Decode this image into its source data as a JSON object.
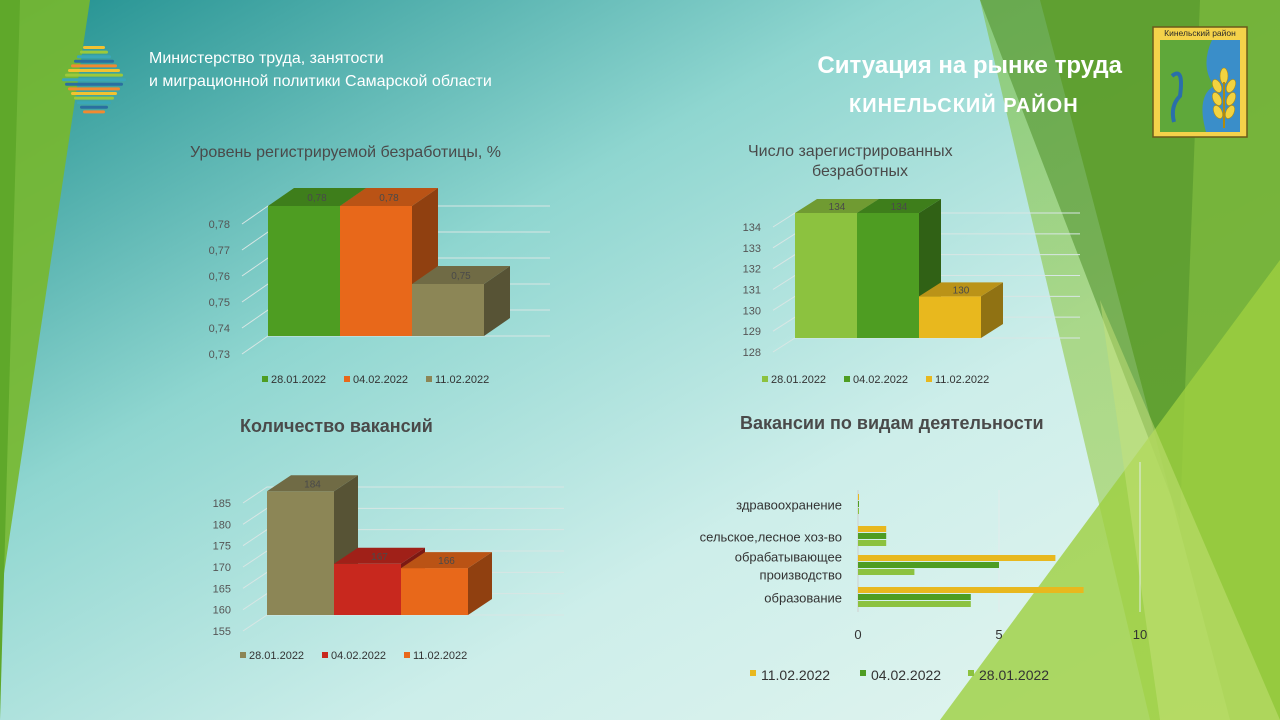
{
  "header": {
    "ministry_line1": "Министерство труда, занятости",
    "ministry_line2": "и миграционной политики  Самарской области",
    "title": "Ситуация на рынке труда",
    "subtitle": "КИНЕЛЬСКИЙ  РАЙОН",
    "emblem_text": "Кинельский район"
  },
  "colors": {
    "green_light": "#8cc23f",
    "green_mid": "#4e9d22",
    "orange": "#e8681a",
    "olive": "#8c8656",
    "yellow": "#e8b81e",
    "red": "#c8281e"
  },
  "chart_data": [
    {
      "id": "unemployment_rate",
      "type": "bar",
      "title": "Уровень регистрируемой  безработицы, %",
      "categories": [
        "28.01.2022",
        "04.02.2022",
        "11.02.2022"
      ],
      "values": [
        0.78,
        0.78,
        0.75
      ],
      "value_labels": [
        "0,78",
        "0,78",
        "0,75"
      ],
      "ticks": [
        "0,73",
        "0,74",
        "0,75",
        "0,76",
        "0,77",
        "0,78"
      ],
      "ylim": [
        0.73,
        0.78
      ],
      "colors": [
        "#4e9d22",
        "#e8681a",
        "#8c8656"
      ],
      "legend": "bottom"
    },
    {
      "id": "registered_unemployed",
      "type": "bar",
      "title_lines": [
        "Число зарегистрированных",
        "безработных"
      ],
      "categories": [
        "28.01.2022",
        "04.02.2022",
        "11.02.2022"
      ],
      "values": [
        134,
        134,
        130
      ],
      "value_labels": [
        "134",
        "134",
        "130"
      ],
      "ticks": [
        "128",
        "129",
        "130",
        "131",
        "132",
        "133",
        "134"
      ],
      "ylim": [
        128,
        134
      ],
      "colors": [
        "#8cc23f",
        "#4e9d22",
        "#e8b81e"
      ],
      "legend": "bottom"
    },
    {
      "id": "vacancies_count",
      "type": "bar",
      "title": "Количество вакансий",
      "categories": [
        "28.01.2022",
        "04.02.2022",
        "11.02.2022"
      ],
      "values": [
        184,
        167,
        166
      ],
      "value_labels": [
        "184",
        "167",
        "166"
      ],
      "ticks": [
        "155",
        "160",
        "165",
        "170",
        "175",
        "180",
        "185"
      ],
      "ylim": [
        155,
        185
      ],
      "colors": [
        "#8c8656",
        "#c8281e",
        "#e8681a"
      ],
      "legend": "bottom"
    },
    {
      "id": "vacancies_by_activity",
      "type": "bar",
      "orientation": "horizontal",
      "title": "Вакансии по видам деятельности",
      "categories": [
        "здравоохранение",
        "сельское,лесное хоз-во",
        "обрабатывающее производство",
        "образование"
      ],
      "category_lines": [
        [
          "здравоохранение"
        ],
        [
          "сельское,лесное хоз-во"
        ],
        [
          "обрабатывающее",
          "производство"
        ],
        [
          "образование"
        ]
      ],
      "series": [
        {
          "name": "11.02.2022",
          "color": "#e8b81e",
          "values": [
            0,
            1,
            7,
            8
          ]
        },
        {
          "name": "04.02.2022",
          "color": "#4e9d22",
          "values": [
            0,
            1,
            5,
            4
          ]
        },
        {
          "name": "28.01.2022",
          "color": "#8cc23f",
          "values": [
            0,
            1,
            2,
            4
          ]
        }
      ],
      "ticks": [
        "0",
        "5",
        "10"
      ],
      "xlim": [
        0,
        10
      ],
      "legend": "bottom"
    }
  ]
}
